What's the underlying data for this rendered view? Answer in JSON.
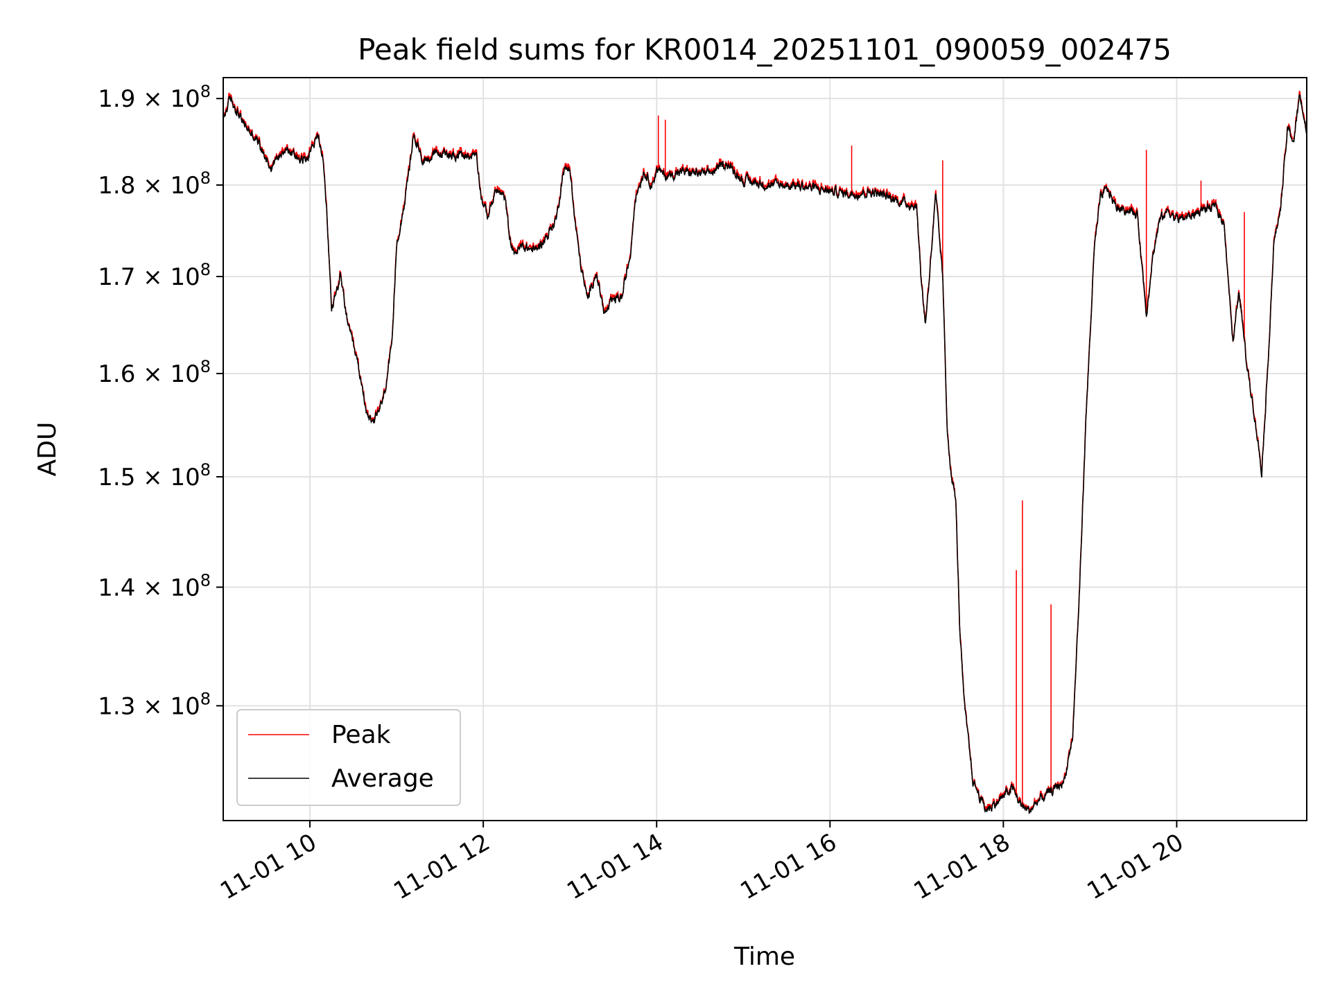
{
  "chart_data": {
    "type": "line",
    "title": "Peak field sums for KR0014_20251101_090059_002475",
    "xlabel": "Time",
    "ylabel": "ADU",
    "yscale": "log",
    "xlim": [
      9.0,
      21.5
    ],
    "ylim": [
      121000000,
      192500000
    ],
    "grid": true,
    "legend_position": "lower-left",
    "x_ticks": [
      {
        "value": 10,
        "label": "11-01 10"
      },
      {
        "value": 12,
        "label": "11-01 12"
      },
      {
        "value": 14,
        "label": "11-01 14"
      },
      {
        "value": 16,
        "label": "11-01 16"
      },
      {
        "value": 18,
        "label": "11-01 18"
      },
      {
        "value": 20,
        "label": "11-01 20"
      }
    ],
    "y_ticks": [
      {
        "value": 130000000,
        "mantissa": "1.3"
      },
      {
        "value": 140000000,
        "mantissa": "1.4"
      },
      {
        "value": 150000000,
        "mantissa": "1.5"
      },
      {
        "value": 160000000,
        "mantissa": "1.6"
      },
      {
        "value": 170000000,
        "mantissa": "1.7"
      },
      {
        "value": 180000000,
        "mantissa": "1.8"
      },
      {
        "value": 190000000,
        "mantissa": "1.9"
      }
    ],
    "y_tick_times": "× 10",
    "y_tick_exponent": "8",
    "series": [
      {
        "name": "Peak",
        "color": "#ff0000",
        "spikes": [
          {
            "x": 13.0,
            "y": 181500000
          },
          {
            "x": 14.02,
            "y": 188000000
          },
          {
            "x": 14.1,
            "y": 187500000
          },
          {
            "x": 16.25,
            "y": 184500000
          },
          {
            "x": 17.3,
            "y": 182800000
          },
          {
            "x": 18.15,
            "y": 141500000
          },
          {
            "x": 18.22,
            "y": 147800000
          },
          {
            "x": 18.55,
            "y": 138500000
          },
          {
            "x": 19.65,
            "y": 184000000
          },
          {
            "x": 20.28,
            "y": 180500000
          },
          {
            "x": 20.78,
            "y": 177000000
          }
        ]
      },
      {
        "name": "Average",
        "color": "#000000",
        "points": [
          [
            9.0,
            187500000
          ],
          [
            9.08,
            190000000
          ],
          [
            9.25,
            186800000
          ],
          [
            9.4,
            185000000
          ],
          [
            9.55,
            182000000
          ],
          [
            9.7,
            184200000
          ],
          [
            9.85,
            183200000
          ],
          [
            9.95,
            182800000
          ],
          [
            10.0,
            184000000
          ],
          [
            10.1,
            185500000
          ],
          [
            10.15,
            183000000
          ],
          [
            10.2,
            176000000
          ],
          [
            10.25,
            166500000
          ],
          [
            10.35,
            170000000
          ],
          [
            10.45,
            164500000
          ],
          [
            10.55,
            161000000
          ],
          [
            10.65,
            156500000
          ],
          [
            10.72,
            154800000
          ],
          [
            10.85,
            157500000
          ],
          [
            10.95,
            163000000
          ],
          [
            11.0,
            173500000
          ],
          [
            11.1,
            178500000
          ],
          [
            11.2,
            185800000
          ],
          [
            11.3,
            182800000
          ],
          [
            11.45,
            183500000
          ],
          [
            11.65,
            183500000
          ],
          [
            11.85,
            183200000
          ],
          [
            11.92,
            183800000
          ],
          [
            11.98,
            178500000
          ],
          [
            12.05,
            176500000
          ],
          [
            12.15,
            179500000
          ],
          [
            12.25,
            178500000
          ],
          [
            12.3,
            174500000
          ],
          [
            12.35,
            172500000
          ],
          [
            12.45,
            173200000
          ],
          [
            12.6,
            172800000
          ],
          [
            12.75,
            174500000
          ],
          [
            12.85,
            176500000
          ],
          [
            12.92,
            181500000
          ],
          [
            13.0,
            182000000
          ],
          [
            13.05,
            176500000
          ],
          [
            13.12,
            171500000
          ],
          [
            13.2,
            167500000
          ],
          [
            13.3,
            170500000
          ],
          [
            13.4,
            166000000
          ],
          [
            13.5,
            167500000
          ],
          [
            13.6,
            167800000
          ],
          [
            13.7,
            172500000
          ],
          [
            13.75,
            178500000
          ],
          [
            13.85,
            181500000
          ],
          [
            13.95,
            180000000
          ],
          [
            14.0,
            181800000
          ],
          [
            14.1,
            181000000
          ],
          [
            14.3,
            181500000
          ],
          [
            14.6,
            181200000
          ],
          [
            14.8,
            182500000
          ],
          [
            15.0,
            180500000
          ],
          [
            15.3,
            180000000
          ],
          [
            15.6,
            180000000
          ],
          [
            15.9,
            179500000
          ],
          [
            16.2,
            179000000
          ],
          [
            16.5,
            179200000
          ],
          [
            16.8,
            178200000
          ],
          [
            17.0,
            177600000
          ],
          [
            17.05,
            170000000
          ],
          [
            17.1,
            165000000
          ],
          [
            17.15,
            170500000
          ],
          [
            17.22,
            178800000
          ],
          [
            17.3,
            170000000
          ],
          [
            17.35,
            155000000
          ],
          [
            17.4,
            150000000
          ],
          [
            17.45,
            148000000
          ],
          [
            17.5,
            136000000
          ],
          [
            17.55,
            130000000
          ],
          [
            17.65,
            124000000
          ],
          [
            17.8,
            121800000
          ],
          [
            17.95,
            122500000
          ],
          [
            18.1,
            123500000
          ],
          [
            18.2,
            122200000
          ],
          [
            18.3,
            121700000
          ],
          [
            18.4,
            122500000
          ],
          [
            18.55,
            123200000
          ],
          [
            18.7,
            124000000
          ],
          [
            18.8,
            127500000
          ],
          [
            18.88,
            140000000
          ],
          [
            18.95,
            155000000
          ],
          [
            19.05,
            173000000
          ],
          [
            19.12,
            178500000
          ],
          [
            19.2,
            179600000
          ],
          [
            19.3,
            177500000
          ],
          [
            19.45,
            177200000
          ],
          [
            19.55,
            176500000
          ],
          [
            19.65,
            166000000
          ],
          [
            19.72,
            172000000
          ],
          [
            19.8,
            176000000
          ],
          [
            19.9,
            177200000
          ],
          [
            20.0,
            176200000
          ],
          [
            20.15,
            176500000
          ],
          [
            20.3,
            177300000
          ],
          [
            20.45,
            177500000
          ],
          [
            20.55,
            175500000
          ],
          [
            20.65,
            163000000
          ],
          [
            20.72,
            168500000
          ],
          [
            20.8,
            161500000
          ],
          [
            20.88,
            157000000
          ],
          [
            20.98,
            150500000
          ],
          [
            21.05,
            160500000
          ],
          [
            21.12,
            173500000
          ],
          [
            21.2,
            177500000
          ],
          [
            21.28,
            186500000
          ],
          [
            21.35,
            185000000
          ],
          [
            21.42,
            190500000
          ],
          [
            21.5,
            185800000
          ]
        ]
      }
    ]
  }
}
